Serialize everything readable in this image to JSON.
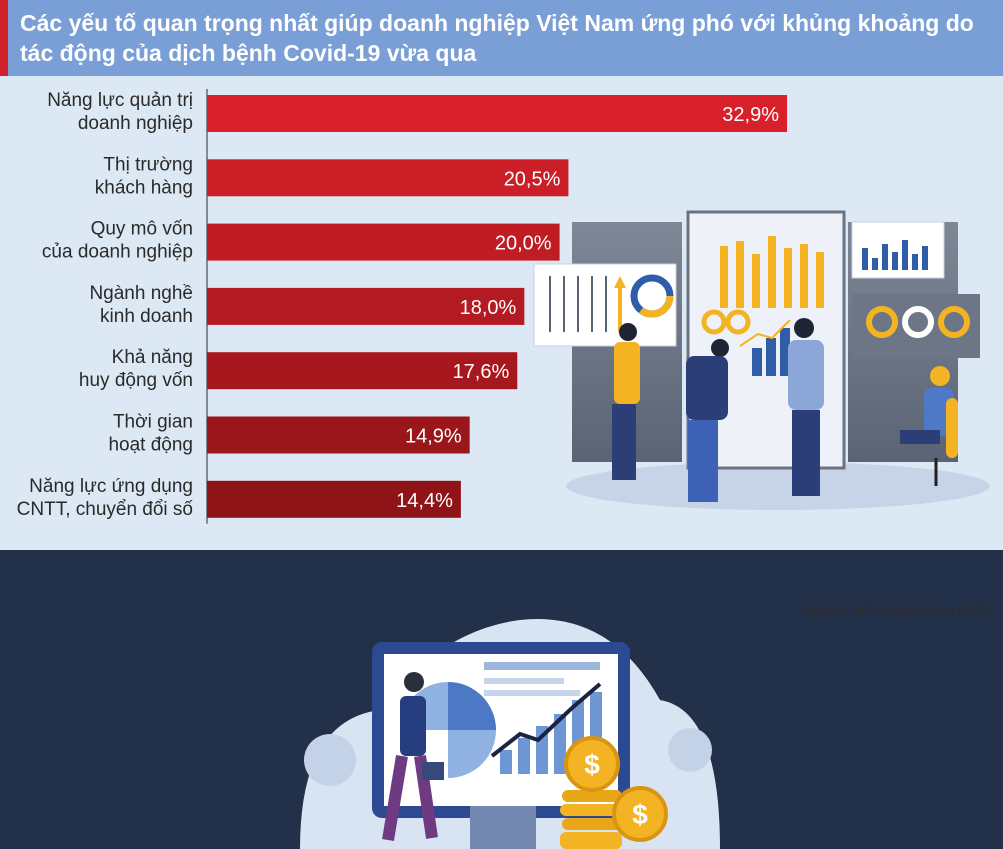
{
  "header": {
    "title": "Các yếu tố quan trọng nhất giúp doanh nghiệp Việt Nam ứng phó với khủng khoảng do tác động của dịch bệnh Covid-19 vừa qua"
  },
  "source": "Nguồn: MPI-Aus4reform 2022",
  "colors": {
    "bar_top": "#d8202a",
    "bar_bottom": "#8e1418",
    "header": "#7a9fd6",
    "panel": "#dde8f5",
    "footer": "#23304a"
  },
  "chart_data": {
    "type": "bar",
    "orientation": "horizontal",
    "title": "Các yếu tố quan trọng nhất giúp doanh nghiệp Việt Nam ứng phó với khủng khoảng do tác động của dịch bệnh Covid-19 vừa qua",
    "categories": [
      [
        "Năng lực quản trị",
        "doanh nghiệp"
      ],
      [
        "Thị trường",
        "khách hàng"
      ],
      [
        "Quy mô vốn",
        "của doanh nghiệp"
      ],
      [
        "Ngành nghề",
        "kinh doanh"
      ],
      [
        "Khả năng",
        "huy động vốn"
      ],
      [
        "Thời gian",
        "hoạt động"
      ],
      [
        "Năng lực ứng dụng",
        "CNTT, chuyển đổi số"
      ]
    ],
    "values": [
      32.9,
      20.5,
      20.0,
      18.0,
      17.6,
      14.9,
      14.4
    ],
    "value_labels": [
      "32,9%",
      "20,5%",
      "20,0%",
      "18,0%",
      "17,6%",
      "14,9%",
      "14,4%"
    ],
    "unit": "%",
    "grid": false
  }
}
